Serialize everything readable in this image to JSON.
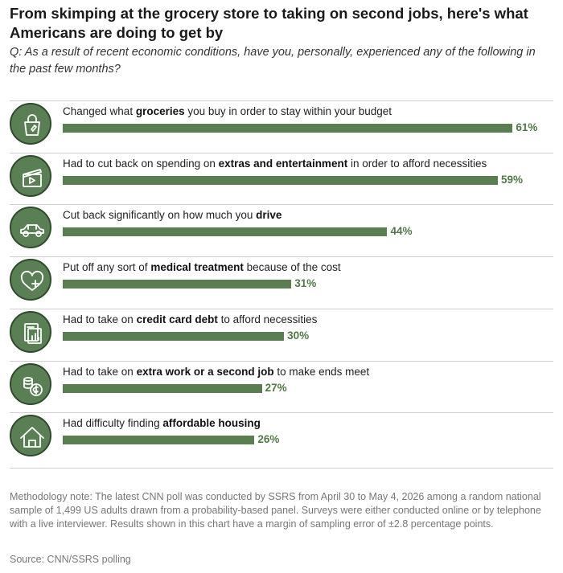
{
  "title": "From skimping at the grocery store to taking on second jobs, here's what Americans are doing to get by",
  "subtitle": "Q: As a result of recent economic conditions, have you, personally, experienced any of the following in the past few months?",
  "methodology": "Methodology note: The latest CNN poll was conducted by SSRS from April 30 to May 4, 2026 among a random national sample of 1,499 US adults drawn from a probability-based panel. Surveys were either conducted online or by telephone with a live interviewer. Results shown in this chart have a margin of sampling error of ±2.8 percentage points.",
  "source": "Source: CNN/SSRS polling",
  "colors": {
    "bar": "#5a7d51",
    "value_text": "#4f7a45",
    "icon_fill": "#5b7f55",
    "icon_border": "#2f4a2c"
  },
  "chart_data": {
    "type": "bar",
    "orientation": "horizontal",
    "value_unit": "%",
    "xlim": [
      0,
      100
    ],
    "grid": false,
    "legend": "none",
    "rows": [
      {
        "icon": "grocery-bag-icon",
        "pre": "Changed what ",
        "bold": "groceries",
        "post": " you buy in order to stay within your budget",
        "value": 61,
        "value_label": "61%"
      },
      {
        "icon": "clapperboard-icon",
        "pre": "Had to cut back on spending on ",
        "bold": "extras and entertainment",
        "post": " in order to afford necessities",
        "value": 59,
        "value_label": "59%"
      },
      {
        "icon": "car-icon",
        "pre": "Cut back significantly on how much you ",
        "bold": "drive",
        "post": "",
        "value": 44,
        "value_label": "44%"
      },
      {
        "icon": "heart-medical-icon",
        "pre": "Put off any sort of ",
        "bold": "medical treatment",
        "post": " because of the cost",
        "value": 31,
        "value_label": "31%"
      },
      {
        "icon": "credit-bill-icon",
        "pre": "Had to take on ",
        "bold": "credit card debt",
        "post": " to afford necessities",
        "value": 30,
        "value_label": "30%"
      },
      {
        "icon": "coins-icon",
        "pre": "Had to take on ",
        "bold": "extra work or a second job",
        "post": " to make ends meet",
        "value": 27,
        "value_label": "27%"
      },
      {
        "icon": "house-icon",
        "pre": "Had difficulty finding ",
        "bold": "affordable housing",
        "post": "",
        "value": 26,
        "value_label": "26%"
      }
    ]
  }
}
